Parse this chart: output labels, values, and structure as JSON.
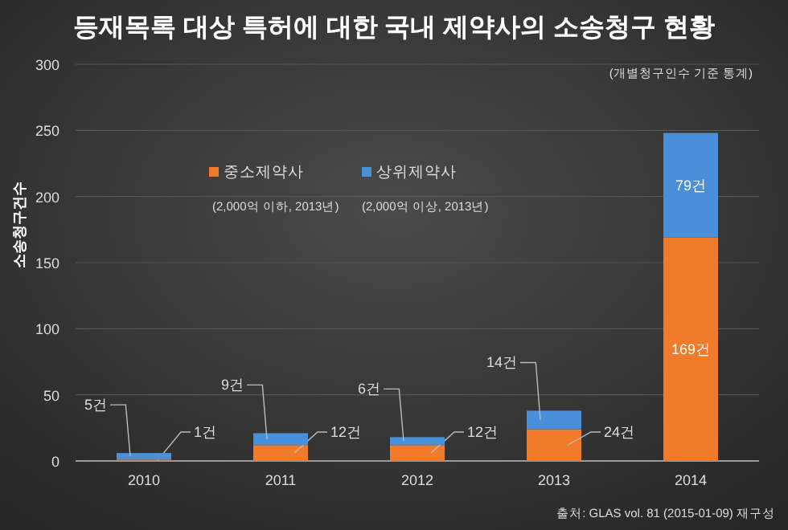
{
  "chart_data": {
    "type": "bar",
    "title": "등재목록 대상 특허에 대한 국내 제약사의 소송청구 현황",
    "ylabel": "소송청구건수",
    "categories": [
      "2010",
      "2011",
      "2012",
      "2013",
      "2014"
    ],
    "stacked": true,
    "series": [
      {
        "name": "중소제약사",
        "color": "#f07b2a",
        "values": [
          1,
          12,
          12,
          24,
          169
        ],
        "value_labels": [
          "1건",
          "12건",
          "12건",
          "24건",
          "169건"
        ]
      },
      {
        "name": "상위제약사",
        "color": "#4a90d9",
        "values": [
          5,
          9,
          6,
          14,
          79
        ],
        "value_labels": [
          "5건",
          "9건",
          "6건",
          "14건",
          "79건"
        ]
      }
    ],
    "annotations": [
      "(개별청구인수 기준 통계)",
      "(2,000억 이하, 2013년)",
      "(2,000억 이상, 2013년)",
      "출처: GLAS vol. 81 (2015-01-09) 재구성"
    ],
    "ylim": [
      0,
      300
    ],
    "yticks": [
      0,
      50,
      100,
      150,
      200,
      250,
      300
    ],
    "grid": "y",
    "legend": "top left"
  }
}
